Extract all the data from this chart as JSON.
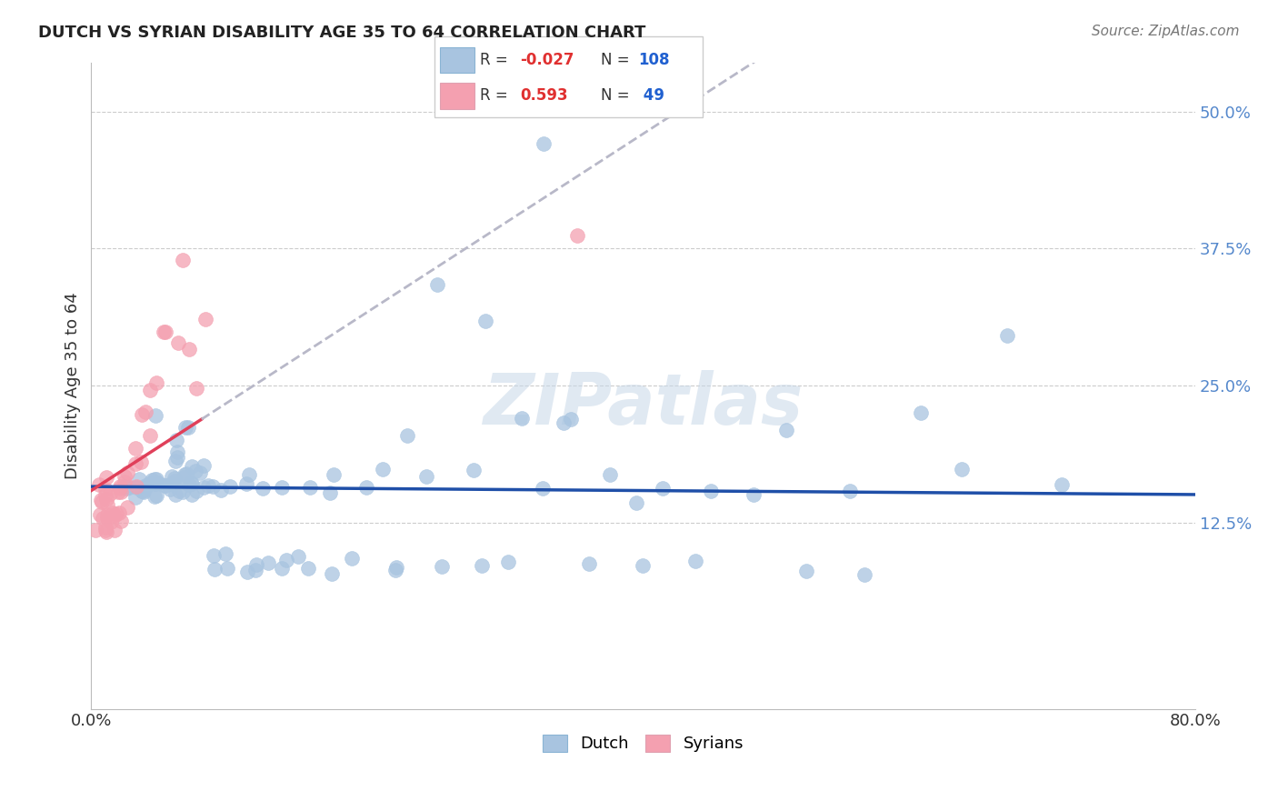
{
  "title": "DUTCH VS SYRIAN DISABILITY AGE 35 TO 64 CORRELATION CHART",
  "source": "Source: ZipAtlas.com",
  "ylabel": "Disability Age 35 to 64",
  "xlim": [
    0.0,
    0.8
  ],
  "ylim": [
    -0.045,
    0.545
  ],
  "yticks": [
    0.0,
    0.125,
    0.25,
    0.375,
    0.5
  ],
  "ytick_labels": [
    "",
    "12.5%",
    "25.0%",
    "37.5%",
    "50.0%"
  ],
  "dutch_R": -0.027,
  "dutch_N": 108,
  "syrian_R": 0.593,
  "syrian_N": 49,
  "dutch_color": "#a8c4e0",
  "syrian_color": "#f4a0b0",
  "dutch_line_color": "#1f4fa8",
  "syrian_line_color": "#e0405a",
  "dashed_line_color": "#b8b8c8",
  "watermark": "ZIPatlas",
  "dutch_scatter_x": [
    0.02,
    0.025,
    0.03,
    0.032,
    0.033,
    0.035,
    0.036,
    0.037,
    0.038,
    0.04,
    0.041,
    0.042,
    0.043,
    0.044,
    0.045,
    0.046,
    0.047,
    0.048,
    0.049,
    0.05,
    0.051,
    0.052,
    0.053,
    0.054,
    0.055,
    0.056,
    0.057,
    0.058,
    0.059,
    0.06,
    0.061,
    0.062,
    0.063,
    0.064,
    0.065,
    0.066,
    0.067,
    0.068,
    0.069,
    0.07,
    0.071,
    0.072,
    0.073,
    0.074,
    0.075,
    0.076,
    0.077,
    0.078,
    0.08,
    0.082,
    0.085,
    0.087,
    0.09,
    0.092,
    0.095,
    0.1,
    0.105,
    0.11,
    0.115,
    0.12,
    0.125,
    0.13,
    0.135,
    0.14,
    0.15,
    0.16,
    0.17,
    0.18,
    0.19,
    0.2,
    0.21,
    0.22,
    0.23,
    0.24,
    0.25,
    0.27,
    0.29,
    0.31,
    0.33,
    0.35,
    0.37,
    0.39,
    0.42,
    0.45,
    0.48,
    0.51,
    0.55,
    0.6,
    0.63,
    0.67,
    0.7,
    0.36,
    0.4,
    0.44,
    0.34,
    0.28,
    0.52,
    0.56,
    0.3,
    0.26,
    0.22,
    0.18,
    0.16,
    0.14,
    0.12,
    0.1,
    0.09,
    0.325
  ],
  "dutch_scatter_y": [
    0.155,
    0.16,
    0.155,
    0.15,
    0.155,
    0.16,
    0.155,
    0.155,
    0.155,
    0.158,
    0.16,
    0.155,
    0.16,
    0.155,
    0.16,
    0.155,
    0.158,
    0.16,
    0.155,
    0.16,
    0.155,
    0.22,
    0.16,
    0.155,
    0.17,
    0.18,
    0.16,
    0.19,
    0.155,
    0.2,
    0.155,
    0.16,
    0.155,
    0.19,
    0.17,
    0.155,
    0.21,
    0.16,
    0.155,
    0.17,
    0.175,
    0.155,
    0.21,
    0.16,
    0.155,
    0.17,
    0.155,
    0.17,
    0.18,
    0.155,
    0.155,
    0.17,
    0.09,
    0.155,
    0.095,
    0.155,
    0.17,
    0.085,
    0.17,
    0.085,
    0.155,
    0.09,
    0.09,
    0.155,
    0.09,
    0.155,
    0.155,
    0.17,
    0.09,
    0.155,
    0.17,
    0.085,
    0.21,
    0.17,
    0.34,
    0.17,
    0.3,
    0.22,
    0.155,
    0.22,
    0.17,
    0.14,
    0.155,
    0.155,
    0.155,
    0.21,
    0.155,
    0.22,
    0.17,
    0.3,
    0.155,
    0.09,
    0.085,
    0.085,
    0.22,
    0.085,
    0.085,
    0.085,
    0.085,
    0.085,
    0.085,
    0.085,
    0.085,
    0.085,
    0.085,
    0.085,
    0.085,
    0.47
  ],
  "syrian_scatter_x": [
    0.005,
    0.006,
    0.007,
    0.008,
    0.008,
    0.009,
    0.009,
    0.01,
    0.01,
    0.011,
    0.011,
    0.012,
    0.012,
    0.013,
    0.013,
    0.014,
    0.014,
    0.015,
    0.015,
    0.016,
    0.016,
    0.017,
    0.018,
    0.019,
    0.02,
    0.021,
    0.022,
    0.023,
    0.024,
    0.025,
    0.026,
    0.028,
    0.03,
    0.032,
    0.034,
    0.036,
    0.038,
    0.04,
    0.042,
    0.045,
    0.048,
    0.052,
    0.055,
    0.06,
    0.065,
    0.07,
    0.075,
    0.08,
    0.35
  ],
  "syrian_scatter_y": [
    0.14,
    0.13,
    0.155,
    0.12,
    0.16,
    0.115,
    0.16,
    0.13,
    0.14,
    0.135,
    0.145,
    0.12,
    0.155,
    0.13,
    0.15,
    0.12,
    0.155,
    0.125,
    0.13,
    0.115,
    0.14,
    0.12,
    0.135,
    0.13,
    0.155,
    0.16,
    0.155,
    0.14,
    0.16,
    0.155,
    0.165,
    0.17,
    0.175,
    0.18,
    0.19,
    0.16,
    0.22,
    0.225,
    0.2,
    0.25,
    0.26,
    0.295,
    0.3,
    0.295,
    0.37,
    0.29,
    0.255,
    0.315,
    0.385
  ]
}
